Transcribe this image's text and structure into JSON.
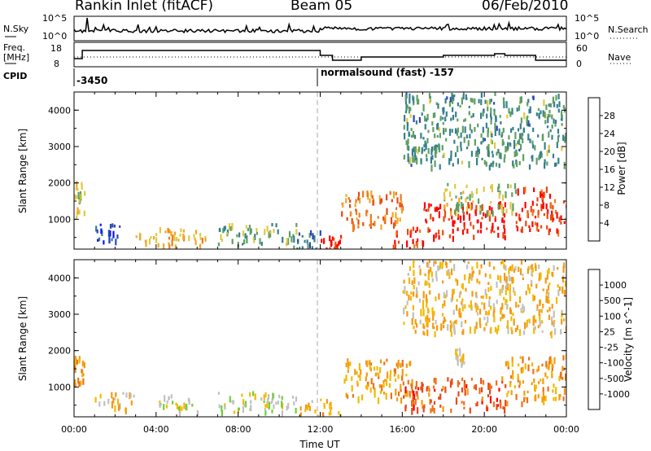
{
  "header": {
    "station": "Rankin Inlet (fitACF)",
    "beam": "Beam 05",
    "date": "06/Feb/2010"
  },
  "noise_panel": {
    "left_label": "N.Sky",
    "right_label": "N.Search",
    "left_ticks": [
      "10^5",
      "10^0"
    ],
    "right_ticks": [
      "10^5",
      "10^0"
    ]
  },
  "freq_panel": {
    "left_label_1": "Freq.",
    "left_label_2": "[MHz]",
    "right_label": "Nave",
    "left_ticks": [
      "18",
      "8"
    ],
    "right_ticks": [
      "60",
      "0"
    ]
  },
  "cpid_panel": {
    "label": "CPID",
    "segments": [
      {
        "start_hour": 0,
        "text": "-3450"
      },
      {
        "start_hour": 12,
        "text": "normalsound (fast) -157"
      }
    ]
  },
  "time_axis": {
    "label": "Time UT",
    "ticks": [
      "00:00",
      "04:00",
      "08:00",
      "12:00",
      "16:00",
      "20:00",
      "00:00"
    ],
    "range_hours": [
      0,
      24
    ]
  },
  "power_colorbar": {
    "label": "Power [dB]",
    "ticks": [
      "4",
      "8",
      "12",
      "16",
      "20",
      "24",
      "28"
    ],
    "colors": [
      "#0a10ff",
      "#2b47b4",
      "#35808c",
      "#5f9f63",
      "#e0c840",
      "#f5a623",
      "#f07a1a",
      "#e84a10",
      "#ff0000"
    ]
  },
  "velocity_colorbar": {
    "label": "Velocity [m s^-1]",
    "ticks": [
      "1000",
      "500",
      "100",
      "25",
      "-25",
      "-100",
      "-500",
      "-1000"
    ],
    "colors": [
      "#1f3fae",
      "#2e6e8a",
      "#3f8f5a",
      "#6fcf3c",
      "#c0c0c0",
      "#f5b800",
      "#f59a10",
      "#f07018",
      "#e84818",
      "#ff0000"
    ]
  },
  "chart_data": [
    {
      "type": "heatmap",
      "name": "power",
      "xlabel": "Time UT",
      "ylabel": "Slant Range [km]",
      "xlim": [
        0,
        24
      ],
      "ylim": [
        180,
        4500
      ],
      "yticks": [
        1000,
        2000,
        3000,
        4000
      ],
      "colorbar_range": [
        0,
        30
      ],
      "regions": [
        {
          "t0": 0.0,
          "t1": 0.5,
          "r0": 1100,
          "r1": 2100,
          "value": 14
        },
        {
          "t0": 1.0,
          "t1": 2.5,
          "r0": 400,
          "r1": 900,
          "value": 6
        },
        {
          "t0": 3.0,
          "t1": 6.5,
          "r0": 300,
          "r1": 800,
          "value": 18
        },
        {
          "t0": 7.0,
          "t1": 11.0,
          "r0": 350,
          "r1": 900,
          "value": 12
        },
        {
          "t0": 10.5,
          "t1": 12.0,
          "r0": 200,
          "r1": 700,
          "value": 8
        },
        {
          "t0": 12.0,
          "t1": 13.0,
          "r0": 200,
          "r1": 600,
          "value": 27
        },
        {
          "t0": 13.0,
          "t1": 16.0,
          "r0": 800,
          "r1": 1800,
          "value": 22
        },
        {
          "t0": 15.5,
          "t1": 17.0,
          "r0": 200,
          "r1": 800,
          "value": 26
        },
        {
          "t0": 17.0,
          "t1": 21.0,
          "r0": 500,
          "r1": 1500,
          "value": 28
        },
        {
          "t0": 18.0,
          "t1": 21.5,
          "r0": 1200,
          "r1": 2000,
          "value": 14
        },
        {
          "t0": 21.5,
          "t1": 24.0,
          "r0": 700,
          "r1": 1900,
          "value": 26
        },
        {
          "t0": 16.0,
          "t1": 24.0,
          "r0": 2500,
          "r1": 4500,
          "value": 10
        }
      ]
    },
    {
      "type": "heatmap",
      "name": "velocity",
      "xlabel": "Time UT",
      "ylabel": "Slant Range [km]",
      "xlim": [
        0,
        24
      ],
      "ylim": [
        180,
        4500
      ],
      "yticks": [
        1000,
        2000,
        3000,
        4000
      ],
      "colorbar_range": [
        1000,
        -1000
      ],
      "regions": [
        {
          "t0": 0.0,
          "t1": 0.5,
          "r0": 1100,
          "r1": 2000,
          "value": -300
        },
        {
          "t0": 1.0,
          "t1": 3.0,
          "r0": 400,
          "r1": 900,
          "value": -100
        },
        {
          "t0": 4.0,
          "t1": 6.0,
          "r0": 300,
          "r1": 800,
          "value": 60
        },
        {
          "t0": 7.0,
          "t1": 11.0,
          "r0": 350,
          "r1": 900,
          "value": 150
        },
        {
          "t0": 11.0,
          "t1": 13.0,
          "r0": 200,
          "r1": 700,
          "value": -200
        },
        {
          "t0": 13.0,
          "t1": 16.5,
          "r0": 700,
          "r1": 1800,
          "value": -250
        },
        {
          "t0": 16.0,
          "t1": 21.0,
          "r0": 400,
          "r1": 1300,
          "value": -600
        },
        {
          "t0": 21.0,
          "t1": 24.0,
          "r0": 600,
          "r1": 1900,
          "value": -300
        },
        {
          "t0": 16.0,
          "t1": 24.0,
          "r0": 2500,
          "r1": 4500,
          "value": -150
        },
        {
          "t0": 18.5,
          "t1": 19.0,
          "r0": 1700,
          "r1": 2100,
          "value": 0
        }
      ]
    }
  ]
}
